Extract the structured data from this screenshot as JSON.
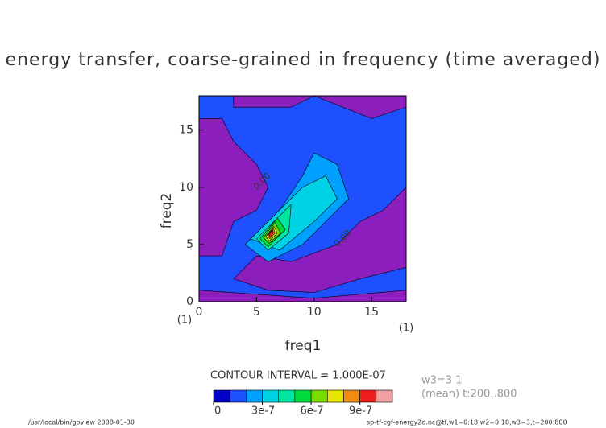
{
  "chart_data": {
    "type": "contour",
    "title": "energy transfer, coarse-grained in frequency (time averaged)",
    "x_label": "freq1",
    "y_label": "freq2",
    "x_unit": "(1)",
    "y_unit": "(1)",
    "xlim": [
      0,
      18
    ],
    "ylim": [
      0,
      18
    ],
    "xticks": [
      0,
      5,
      10,
      15
    ],
    "yticks": [
      0,
      5,
      10,
      15
    ],
    "below_color": "#8c1ebe",
    "levels": [
      0,
      1e-07,
      2e-07,
      3e-07,
      4e-07,
      5e-07,
      6e-07,
      7e-07,
      8e-07,
      9e-07,
      1e-06,
      1.1e-06
    ],
    "colors": [
      "#0000c8",
      "#1e50ff",
      "#00a0ff",
      "#00d2e6",
      "#00e6a0",
      "#00dc3c",
      "#78dc00",
      "#e6e600",
      "#f08c14",
      "#f01e1e",
      "#f0a0a0"
    ],
    "colorbar_ticks": [
      {
        "value": 0,
        "label": "0"
      },
      {
        "value": 3e-07,
        "label": "3e-7"
      },
      {
        "value": 6e-07,
        "label": "6e-7"
      },
      {
        "value": 9e-07,
        "label": "9e-7"
      }
    ],
    "contour_labels": [
      "0.00",
      "0.00"
    ],
    "contour_interval": "CONTOUR INTERVAL = 1.000E-07",
    "info": [
      "w3=3 1",
      "(mean) t:200..800"
    ],
    "footer_left": "/usr/local/bin/gpview  2008-01-30",
    "footer_right": "sp-tf-cgf-energy2d.nc@tf,w1=0:18,w2=0:18,w3=3,t=200:800"
  }
}
